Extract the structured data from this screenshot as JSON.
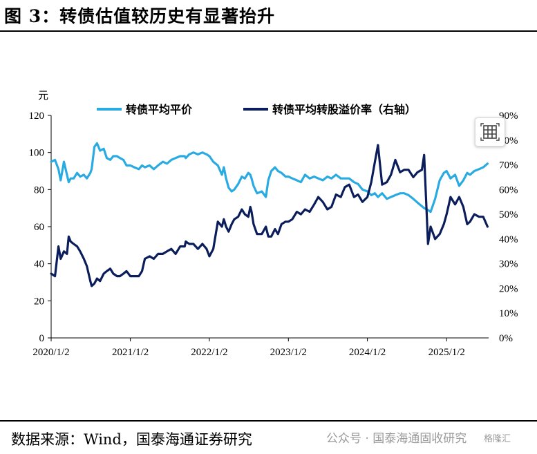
{
  "figure": {
    "title": "图 3：转债估值较历史有显著抬升",
    "source": "数据来源：Wind，国泰海通证券研究",
    "watermark": "公众号 · 国泰海通固收研究",
    "watermark_badge": "格隆汇"
  },
  "colors": {
    "price": "#29ABE2",
    "premium": "#0B1E5B"
  },
  "chart_data": {
    "type": "line",
    "left_axis_unit": "元",
    "ylim_left": [
      0,
      120
    ],
    "yticks_left": [
      "0",
      "20",
      "40",
      "60",
      "80",
      "100",
      "120"
    ],
    "ylim_right": [
      0,
      90
    ],
    "yticks_right": [
      "0%",
      "10%",
      "20%",
      "30%",
      "40%",
      "50%",
      "60%",
      "70%",
      "80%",
      "90%"
    ],
    "xlim": [
      "2020-01-02",
      "2025-07-15"
    ],
    "xticks": [
      "2020/1/2",
      "2021/1/2",
      "2022/1/2",
      "2023/1/2",
      "2024/1/2",
      "2025/1/2"
    ],
    "legend_position": "top",
    "series": [
      {
        "name": "转债平均平价",
        "axis": "left",
        "x": [
          "2020-01-02",
          "2020-01-20",
          "2020-02-05",
          "2020-02-15",
          "2020-03-01",
          "2020-03-15",
          "2020-03-23",
          "2020-04-01",
          "2020-04-15",
          "2020-05-01",
          "2020-05-15",
          "2020-06-01",
          "2020-06-15",
          "2020-07-01",
          "2020-07-07",
          "2020-07-20",
          "2020-08-01",
          "2020-08-15",
          "2020-09-01",
          "2020-09-15",
          "2020-10-01",
          "2020-10-15",
          "2020-11-01",
          "2020-11-15",
          "2020-12-01",
          "2020-12-15",
          "2021-01-02",
          "2021-01-20",
          "2021-02-10",
          "2021-02-25",
          "2021-03-10",
          "2021-04-01",
          "2021-04-20",
          "2021-05-10",
          "2021-06-01",
          "2021-06-20",
          "2021-07-10",
          "2021-07-30",
          "2021-08-20",
          "2021-09-10",
          "2021-09-15",
          "2021-10-01",
          "2021-10-20",
          "2021-11-10",
          "2021-12-01",
          "2021-12-20",
          "2022-01-02",
          "2022-01-20",
          "2022-02-10",
          "2022-03-01",
          "2022-03-10",
          "2022-03-20",
          "2022-04-01",
          "2022-04-15",
          "2022-04-27",
          "2022-05-15",
          "2022-06-01",
          "2022-06-15",
          "2022-07-01",
          "2022-07-10",
          "2022-07-16",
          "2022-07-25",
          "2022-08-10",
          "2022-09-01",
          "2022-09-20",
          "2022-10-01",
          "2022-10-15",
          "2022-11-01",
          "2022-11-15",
          "2022-12-01",
          "2022-12-20",
          "2023-01-02",
          "2023-01-20",
          "2023-02-10",
          "2023-03-01",
          "2023-03-20",
          "2023-04-10",
          "2023-05-01",
          "2023-05-20",
          "2023-06-10",
          "2023-07-01",
          "2023-07-20",
          "2023-08-10",
          "2023-09-01",
          "2023-09-20",
          "2023-10-10",
          "2023-11-01",
          "2023-11-20",
          "2023-12-10",
          "2024-01-02",
          "2024-01-20",
          "2024-02-05",
          "2024-02-20",
          "2024-03-10",
          "2024-04-01",
          "2024-04-20",
          "2024-05-10",
          "2024-06-01",
          "2024-06-20",
          "2024-07-10",
          "2024-08-01",
          "2024-08-20",
          "2024-09-10",
          "2024-09-20",
          "2024-10-08",
          "2024-10-20",
          "2024-11-10",
          "2024-12-01",
          "2024-12-20",
          "2025-01-02",
          "2025-01-20",
          "2025-02-10",
          "2025-03-01",
          "2025-03-20",
          "2025-04-07",
          "2025-04-20",
          "2025-05-10",
          "2025-06-01",
          "2025-06-20",
          "2025-07-10"
        ],
        "values": [
          95,
          96,
          91,
          85,
          95,
          88,
          84,
          86,
          86,
          89,
          87,
          88,
          86,
          89,
          91,
          103,
          105,
          101,
          102,
          97,
          96,
          98,
          98,
          97,
          96,
          93,
          93,
          92,
          91,
          93,
          92,
          93,
          91,
          93,
          95,
          94,
          96,
          97,
          98,
          98,
          97,
          99,
          100,
          99,
          100,
          99,
          98,
          95,
          93,
          88,
          92,
          86,
          81,
          79,
          80,
          83,
          87,
          86,
          89,
          88,
          86,
          82,
          78,
          79,
          76,
          85,
          90,
          92,
          90,
          89,
          87,
          87,
          86,
          85,
          84,
          88,
          86,
          87,
          86,
          85,
          87,
          86,
          88,
          86,
          86,
          86,
          84,
          83,
          80,
          79,
          77,
          78,
          76,
          78,
          75,
          76,
          77,
          78,
          78,
          77,
          75,
          73,
          71,
          70,
          69,
          68,
          75,
          85,
          89,
          90,
          86,
          88,
          82,
          85,
          89,
          88,
          90,
          91,
          92,
          94
        ]
      },
      {
        "name": "转债平均转股溢价率（右轴）",
        "axis": "right",
        "x": [
          "2020-01-02",
          "2020-01-20",
          "2020-02-05",
          "2020-02-15",
          "2020-03-01",
          "2020-03-15",
          "2020-03-23",
          "2020-04-01",
          "2020-04-15",
          "2020-05-01",
          "2020-05-15",
          "2020-06-01",
          "2020-06-15",
          "2020-07-01",
          "2020-07-07",
          "2020-07-20",
          "2020-08-01",
          "2020-08-15",
          "2020-09-01",
          "2020-09-15",
          "2020-10-01",
          "2020-10-15",
          "2020-11-01",
          "2020-11-15",
          "2020-12-01",
          "2020-12-15",
          "2021-01-02",
          "2021-01-20",
          "2021-02-10",
          "2021-02-25",
          "2021-03-10",
          "2021-04-01",
          "2021-04-20",
          "2021-05-10",
          "2021-06-01",
          "2021-06-20",
          "2021-07-10",
          "2021-07-30",
          "2021-08-20",
          "2021-09-10",
          "2021-09-15",
          "2021-10-01",
          "2021-10-20",
          "2021-11-10",
          "2021-12-01",
          "2021-12-20",
          "2022-01-02",
          "2022-01-20",
          "2022-02-10",
          "2022-03-01",
          "2022-03-10",
          "2022-03-20",
          "2022-04-01",
          "2022-04-15",
          "2022-04-27",
          "2022-05-15",
          "2022-06-01",
          "2022-06-15",
          "2022-07-01",
          "2022-07-10",
          "2022-07-16",
          "2022-07-25",
          "2022-08-10",
          "2022-09-01",
          "2022-09-20",
          "2022-10-01",
          "2022-10-15",
          "2022-11-01",
          "2022-11-15",
          "2022-12-01",
          "2022-12-20",
          "2023-01-02",
          "2023-01-20",
          "2023-02-10",
          "2023-03-01",
          "2023-03-20",
          "2023-04-10",
          "2023-05-01",
          "2023-05-20",
          "2023-06-10",
          "2023-07-01",
          "2023-07-20",
          "2023-08-10",
          "2023-09-01",
          "2023-09-20",
          "2023-10-10",
          "2023-11-01",
          "2023-11-20",
          "2023-12-10",
          "2024-01-02",
          "2024-01-20",
          "2024-02-05",
          "2024-02-20",
          "2024-03-10",
          "2024-04-01",
          "2024-04-20",
          "2024-05-10",
          "2024-06-01",
          "2024-06-20",
          "2024-07-10",
          "2024-08-01",
          "2024-08-20",
          "2024-09-10",
          "2024-09-20",
          "2024-10-08",
          "2024-10-20",
          "2024-11-10",
          "2024-12-01",
          "2024-12-20",
          "2025-01-02",
          "2025-01-20",
          "2025-02-10",
          "2025-03-01",
          "2025-03-20",
          "2025-04-07",
          "2025-04-20",
          "2025-05-10",
          "2025-06-01",
          "2025-06-20",
          "2025-07-10"
        ],
        "values": [
          26,
          25,
          37,
          32,
          35,
          34,
          41,
          39,
          38,
          37,
          35,
          32,
          29,
          23,
          21,
          22,
          24,
          23,
          26,
          27,
          28,
          26,
          25,
          25,
          26,
          27,
          25,
          25,
          25,
          27,
          32,
          33,
          32,
          34,
          34,
          35,
          36,
          34,
          37,
          37,
          39,
          38,
          38,
          36,
          38,
          36,
          33,
          36,
          47,
          45,
          48,
          45,
          43,
          46,
          48,
          49,
          52,
          50,
          49,
          53,
          51,
          46,
          42,
          42,
          45,
          41,
          41,
          44,
          42,
          46,
          47,
          47,
          48,
          51,
          50,
          52,
          51,
          54,
          57,
          55,
          52,
          53,
          58,
          57,
          61,
          62,
          57,
          58,
          55,
          57,
          63,
          71,
          78,
          62,
          63,
          66,
          72,
          67,
          68,
          68,
          65,
          67,
          68,
          74,
          38,
          45,
          40,
          42,
          46,
          50,
          57,
          54,
          57,
          53,
          46,
          47,
          50,
          49,
          49,
          45
        ]
      }
    ]
  }
}
